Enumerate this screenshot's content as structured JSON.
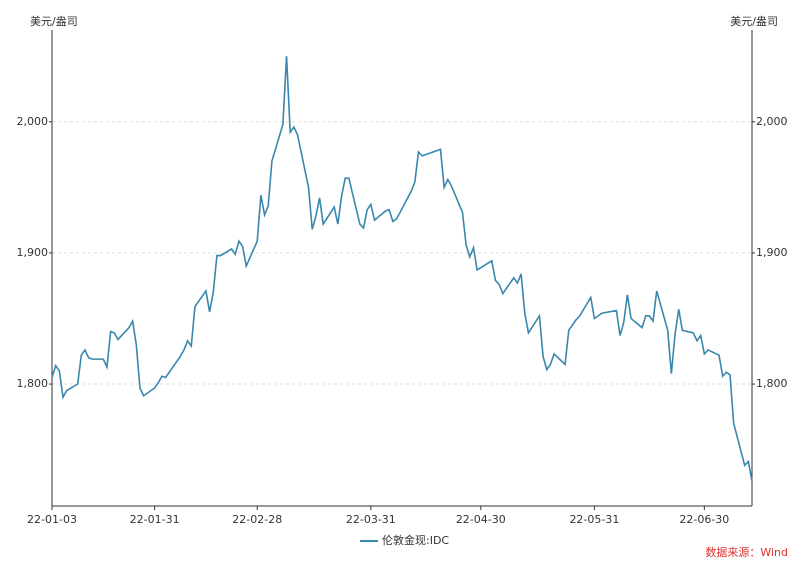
{
  "chart_data": {
    "type": "line",
    "unit_label": "美元/盎司",
    "source": "数据来源：Wind",
    "x": [
      "22-01-03",
      "22-01-04",
      "22-01-05",
      "22-01-06",
      "22-01-07",
      "22-01-10",
      "22-01-11",
      "22-01-12",
      "22-01-13",
      "22-01-14",
      "22-01-17",
      "22-01-18",
      "22-01-19",
      "22-01-20",
      "22-01-21",
      "22-01-24",
      "22-01-25",
      "22-01-26",
      "22-01-27",
      "22-01-28",
      "22-01-31",
      "22-02-01",
      "22-02-02",
      "22-02-03",
      "22-02-04",
      "22-02-07",
      "22-02-08",
      "22-02-09",
      "22-02-10",
      "22-02-11",
      "22-02-14",
      "22-02-15",
      "22-02-16",
      "22-02-17",
      "22-02-18",
      "22-02-21",
      "22-02-22",
      "22-02-23",
      "22-02-24",
      "22-02-25",
      "22-02-28",
      "22-03-01",
      "22-03-02",
      "22-03-03",
      "22-03-04",
      "22-03-07",
      "22-03-08",
      "22-03-09",
      "22-03-10",
      "22-03-11",
      "22-03-14",
      "22-03-15",
      "22-03-16",
      "22-03-17",
      "22-03-18",
      "22-03-21",
      "22-03-22",
      "22-03-23",
      "22-03-24",
      "22-03-25",
      "22-03-28",
      "22-03-29",
      "22-03-30",
      "22-03-31",
      "22-04-01",
      "22-04-04",
      "22-04-05",
      "22-04-06",
      "22-04-07",
      "22-04-08",
      "22-04-11",
      "22-04-12",
      "22-04-13",
      "22-04-14",
      "22-04-19",
      "22-04-20",
      "22-04-21",
      "22-04-22",
      "22-04-25",
      "22-04-26",
      "22-04-27",
      "22-04-28",
      "22-04-29",
      "22-05-03",
      "22-05-04",
      "22-05-05",
      "22-05-06",
      "22-05-09",
      "22-05-10",
      "22-05-11",
      "22-05-12",
      "22-05-13",
      "22-05-16",
      "22-05-17",
      "22-05-18",
      "22-05-19",
      "22-05-20",
      "22-05-23",
      "22-05-24",
      "22-05-25",
      "22-05-26",
      "22-05-27",
      "22-05-30",
      "22-05-31",
      "22-06-01",
      "22-06-02",
      "22-06-06",
      "22-06-07",
      "22-06-08",
      "22-06-09",
      "22-06-10",
      "22-06-13",
      "22-06-14",
      "22-06-15",
      "22-06-16",
      "22-06-17",
      "22-06-20",
      "22-06-21",
      "22-06-22",
      "22-06-23",
      "22-06-24",
      "22-06-27",
      "22-06-28",
      "22-06-29",
      "22-06-30",
      "22-07-01",
      "22-07-04",
      "22-07-05",
      "22-07-06",
      "22-07-07",
      "22-07-08",
      "22-07-11",
      "22-07-12",
      "22-07-13"
    ],
    "series": [
      {
        "name": "伦敦金现:IDC",
        "color": "#3a87ad",
        "values": [
          1805,
          1814,
          1810,
          1790,
          1795,
          1800,
          1822,
          1826,
          1820,
          1819,
          1819,
          1813,
          1840,
          1839,
          1834,
          1843,
          1848,
          1830,
          1797,
          1791,
          1797,
          1801,
          1806,
          1805,
          1809,
          1821,
          1826,
          1833,
          1829,
          1859,
          1871,
          1855,
          1870,
          1898,
          1898,
          1903,
          1899,
          1909,
          1905,
          1890,
          1909,
          1944,
          1929,
          1936,
          1970,
          1998,
          2050,
          1992,
          1996,
          1990,
          1950,
          1918,
          1928,
          1942,
          1922,
          1935,
          1922,
          1943,
          1957,
          1957,
          1922,
          1919,
          1933,
          1937,
          1925,
          1932,
          1933,
          1924,
          1926,
          1931,
          1947,
          1954,
          1977,
          1974,
          1979,
          1950,
          1956,
          1951,
          1931,
          1906,
          1897,
          1904,
          1887,
          1894,
          1879,
          1876,
          1869,
          1881,
          1877,
          1884,
          1854,
          1839,
          1852,
          1821,
          1811,
          1815,
          1823,
          1815,
          1841,
          1845,
          1849,
          1852,
          1866,
          1850,
          1852,
          1854,
          1856,
          1837,
          1847,
          1868,
          1850,
          1843,
          1852,
          1852,
          1848,
          1871,
          1841,
          1808,
          1838,
          1857,
          1841,
          1839,
          1833,
          1837,
          1823,
          1826,
          1822,
          1806,
          1809,
          1807,
          1770,
          1738,
          1741,
          1726
        ]
      }
    ],
    "xlim": [
      "22-01-03",
      "22-07-13"
    ],
    "xticks": [
      "22-01-03",
      "22-01-31",
      "22-02-28",
      "22-03-31",
      "22-04-30",
      "22-05-31",
      "22-06-30"
    ],
    "ylim": [
      1707,
      2070
    ],
    "yticks": [
      {
        "value": 1800,
        "label": "1,800"
      },
      {
        "value": 1900,
        "label": "1,900"
      },
      {
        "value": 2000,
        "label": "2,000"
      }
    ],
    "grid": true
  }
}
